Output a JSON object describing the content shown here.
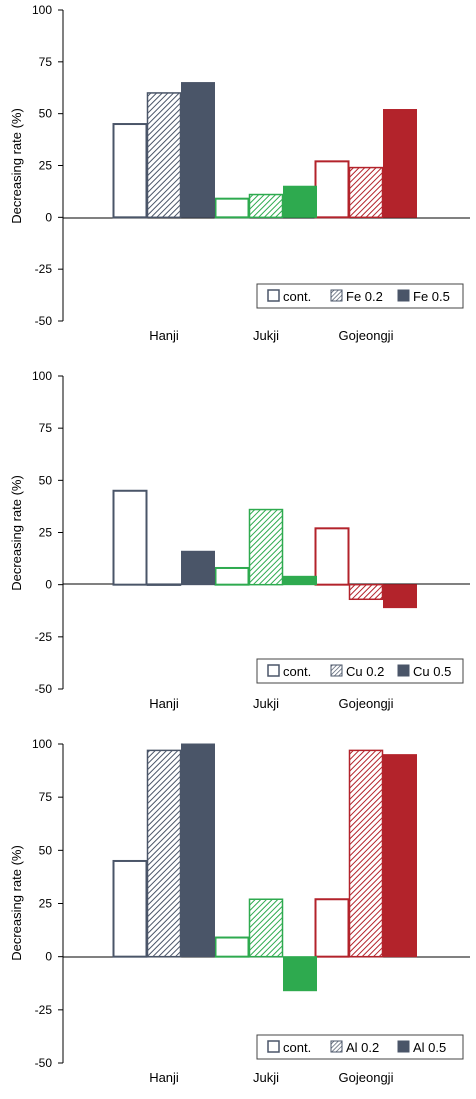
{
  "chart_data": [
    {
      "type": "bar",
      "ylabel": "Decreasing rate (%)",
      "ylim": [
        -50,
        100
      ],
      "yticks": [
        "100",
        "75",
        "50",
        "25",
        "0",
        "-25",
        "-50"
      ],
      "categories": [
        "Hanji",
        "Jukji",
        "Gojeongji"
      ],
      "colors": [
        "#4a5568",
        "#2eaa4f",
        "#b3232b"
      ],
      "legend_position": "bottom-right",
      "series": [
        {
          "name": "cont.",
          "style": "outline",
          "values": [
            45,
            9,
            27
          ]
        },
        {
          "name": "Fe 0.2",
          "style": "hatched",
          "values": [
            60,
            11,
            24
          ]
        },
        {
          "name": "Fe 0.5",
          "style": "solid",
          "values": [
            65,
            15,
            52
          ]
        }
      ]
    },
    {
      "type": "bar",
      "ylabel": "Decreasing rate (%)",
      "ylim": [
        -50,
        100
      ],
      "yticks": [
        "100",
        "75",
        "50",
        "25",
        "0",
        "-25",
        "-50"
      ],
      "categories": [
        "Hanji",
        "Jukji",
        "Gojeongji"
      ],
      "colors": [
        "#4a5568",
        "#2eaa4f",
        "#b3232b"
      ],
      "legend_position": "bottom-right",
      "series": [
        {
          "name": "cont.",
          "style": "outline",
          "values": [
            45,
            8,
            27
          ]
        },
        {
          "name": "Cu 0.2",
          "style": "hatched",
          "values": [
            0,
            36,
            -7
          ]
        },
        {
          "name": "Cu 0.5",
          "style": "solid",
          "values": [
            16,
            4,
            -11
          ]
        }
      ]
    },
    {
      "type": "bar",
      "ylabel": "Decreasing rate (%)",
      "ylim": [
        -50,
        100
      ],
      "yticks": [
        "100",
        "75",
        "50",
        "25",
        "0",
        "-25",
        "-50"
      ],
      "categories": [
        "Hanji",
        "Jukji",
        "Gojeongji"
      ],
      "colors": [
        "#4a5568",
        "#2eaa4f",
        "#b3232b"
      ],
      "legend_position": "bottom-right",
      "series": [
        {
          "name": "cont.",
          "style": "outline",
          "values": [
            45,
            9,
            27
          ]
        },
        {
          "name": "Al 0.2",
          "style": "hatched",
          "values": [
            97,
            27,
            97
          ]
        },
        {
          "name": "Al 0.5",
          "style": "solid",
          "values": [
            100,
            -16,
            95
          ]
        }
      ]
    }
  ]
}
